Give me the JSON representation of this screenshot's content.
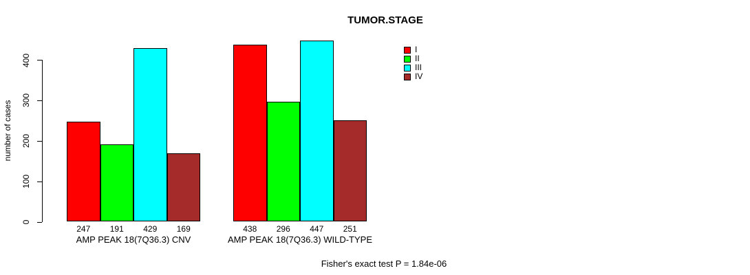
{
  "chart_data": {
    "type": "bar",
    "title": "TUMOR.STAGE",
    "ylabel": "number of cases",
    "xlabel": "",
    "categories": [
      "AMP PEAK 18(7Q36.3) CNV",
      "AMP PEAK 18(7Q36.3) WILD-TYPE"
    ],
    "series": [
      {
        "name": "I",
        "color": "#ff0000",
        "values": [
          247,
          438
        ]
      },
      {
        "name": "II",
        "color": "#00ff00",
        "values": [
          191,
          296
        ]
      },
      {
        "name": "III",
        "color": "#00ffff",
        "values": [
          429,
          447
        ]
      },
      {
        "name": "IV",
        "color": "#a52a2a",
        "values": [
          169,
          251
        ]
      }
    ],
    "yticks": [
      0,
      100,
      200,
      300,
      400
    ],
    "ylim": [
      0,
      460
    ],
    "grid": false,
    "value_labels_shown": true,
    "legend_position": "right",
    "legend_entries": [
      "I",
      "II",
      "III",
      "IV"
    ],
    "annotation": "Fisher's exact test P = 1.84e-06"
  }
}
